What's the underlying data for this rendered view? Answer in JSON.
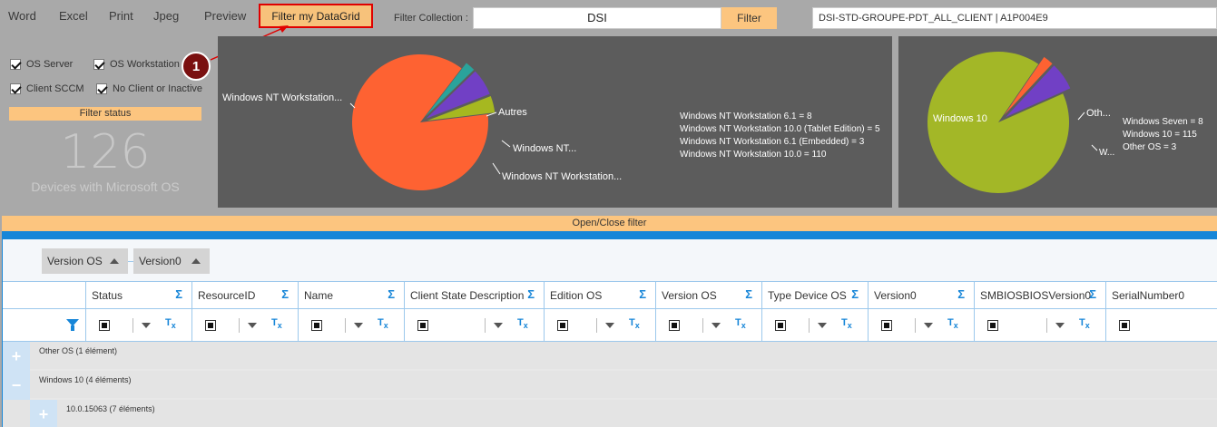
{
  "toolbar": {
    "word": "Word",
    "excel": "Excel",
    "print": "Print",
    "jpeg": "Jpeg",
    "preview": "Preview",
    "filter_grid": "Filter my DataGrid",
    "filter_collection_label": "Filter Collection :",
    "filter_collection_value": "DSI",
    "filter_button": "Filter",
    "collection_name": "DSI-STD-GROUPE-PDT_ALL_CLIENT  |  A1P004E9"
  },
  "filters": {
    "os_server": "OS Server",
    "os_workstation": "OS Workstation",
    "client_sccm": "Client SCCM",
    "no_client": "No Client or Inactive",
    "status_label": "Filter status",
    "device_count": "126",
    "device_count_label": "Devices with Microsoft OS"
  },
  "callout": "1",
  "chart_data": [
    {
      "type": "pie",
      "title": "",
      "slices": [
        {
          "label": "Windows NT Workstation...",
          "value": 110,
          "color": "#fe6232"
        },
        {
          "label": "Autres",
          "value": 3,
          "color": "#2aa39b"
        },
        {
          "label": "Windows NT...",
          "value": 8,
          "color": "#7140c5"
        },
        {
          "label": "Windows NT Workstation...",
          "value": 5,
          "color": "#a6b820"
        }
      ],
      "legend": [
        "Windows NT Workstation 6.1 = 8",
        "Windows NT Workstation 10.0 (Tablet Edition) = 5",
        "Windows NT Workstation 6.1 (Embedded) = 3",
        "Windows NT Workstation 10.0 = 110"
      ]
    },
    {
      "type": "pie",
      "title": "",
      "slices": [
        {
          "label": "Windows 10",
          "value": 115,
          "color": "#a3b727"
        },
        {
          "label": "Oth...",
          "value": 3,
          "color": "#fe6232"
        },
        {
          "label": "W...",
          "value": 8,
          "color": "#7140c5"
        }
      ],
      "legend": [
        "Windows Seven = 8",
        "Windows 10 = 115",
        "Other OS = 3"
      ]
    }
  ],
  "open_close": "Open/Close filter",
  "grid": {
    "group_chips": [
      "Version OS",
      "Version0"
    ],
    "columns": [
      "Status",
      "ResourceID",
      "Name",
      "Client State Description",
      "Edition OS",
      "Version OS",
      "Type Device OS",
      "Version0",
      "SMBIOSBIOSVersion0",
      "SerialNumber0"
    ],
    "sigma": "Σ",
    "clear_glyph": "T",
    "clear_sub": "x",
    "groups": [
      {
        "label": "Other OS (1 élément)",
        "expander": "+"
      },
      {
        "label": "Windows 10 (4 éléments)",
        "expander": "−"
      },
      {
        "label": "10.0.15063 (7 éléments)",
        "expander": "+"
      }
    ]
  }
}
